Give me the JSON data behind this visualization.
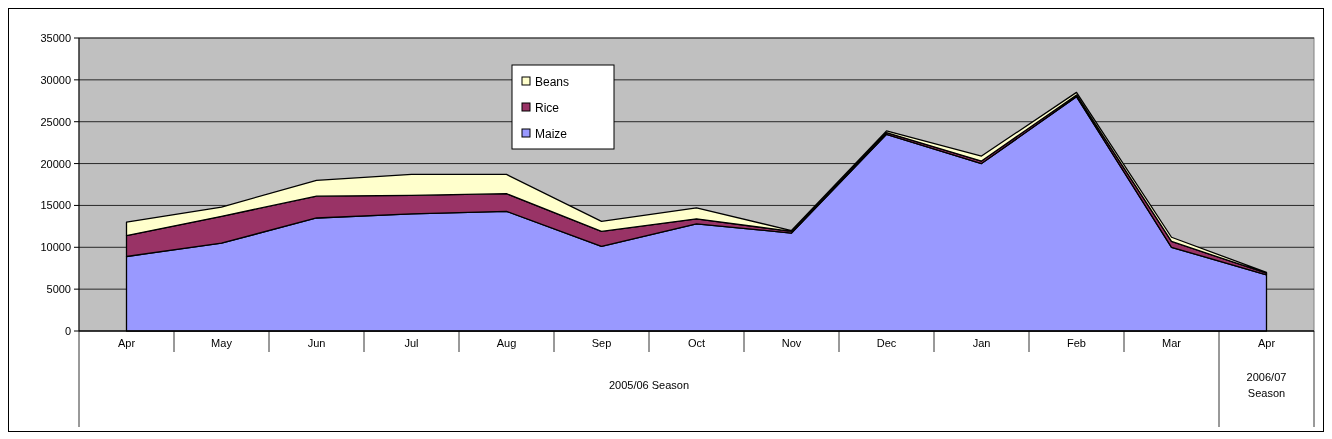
{
  "chart_data": {
    "type": "area",
    "stacked": true,
    "categories": [
      "Apr",
      "May",
      "Jun",
      "Jul",
      "Aug",
      "Sep",
      "Oct",
      "Nov",
      "Dec",
      "Jan",
      "Feb",
      "Mar",
      "Apr"
    ],
    "series": [
      {
        "name": "Maize",
        "color": "#9999ff",
        "values": [
          8900,
          10500,
          13500,
          14000,
          14300,
          10100,
          12800,
          11700,
          23500,
          20000,
          28000,
          10000,
          6700
        ]
      },
      {
        "name": "Rice",
        "color": "#993366",
        "values": [
          2500,
          3200,
          2600,
          2200,
          2100,
          1800,
          600,
          200,
          200,
          300,
          200,
          700,
          200
        ]
      },
      {
        "name": "Beans",
        "color": "#ffffcc",
        "values": [
          1600,
          1100,
          1900,
          2500,
          2300,
          1200,
          1300,
          100,
          200,
          600,
          300,
          500,
          100
        ]
      }
    ],
    "ylim": [
      0,
      35000
    ],
    "yticks": [
      0,
      5000,
      10000,
      15000,
      20000,
      25000,
      30000,
      35000
    ],
    "grid": "y",
    "legend": "top",
    "annotations": [
      "2005/06 Season",
      "2006/07 Season"
    ]
  }
}
